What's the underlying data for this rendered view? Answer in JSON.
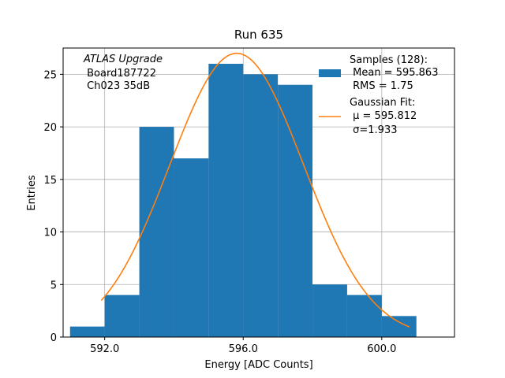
{
  "chart_data": {
    "type": "bar",
    "title": "Run 635",
    "xlabel": "Energy [ADC Counts]",
    "ylabel": "Entries",
    "xlim": [
      590.8,
      602.1
    ],
    "ylim": [
      0,
      27.5
    ],
    "x_ticks": [
      592,
      596,
      600
    ],
    "x_tick_labels": [
      "592.0",
      "596.0",
      "600.0"
    ],
    "y_ticks": [
      0,
      5,
      10,
      15,
      20,
      25
    ],
    "y_tick_labels": [
      "0",
      "5",
      "10",
      "15",
      "20",
      "25"
    ],
    "grid": true,
    "legend_position": "top-right",
    "bin_edges": [
      591,
      592,
      593,
      594,
      595,
      596,
      597,
      598,
      599,
      600,
      601
    ],
    "counts": [
      1,
      4,
      20,
      17,
      26,
      25,
      24,
      5,
      4,
      2
    ],
    "fit": {
      "x_range": [
        591.9,
        600.8
      ],
      "mu": 595.812,
      "sigma": 1.933,
      "amplitude": 27
    },
    "annotation_lines": [
      "ATLAS Upgrade",
      " Board187722",
      " Ch023 35dB"
    ],
    "legend": {
      "samples_lines": [
        "Samples (128):",
        " Mean = 595.863",
        " RMS = 1.75"
      ],
      "fit_lines": [
        "Gaussian Fit:",
        " μ = 595.812",
        " σ=1.933"
      ]
    },
    "colors": {
      "bars": "#1f77b4",
      "fit_line": "#ff7f0e",
      "grid": "#b0b0b0",
      "axes": "#000000"
    }
  }
}
